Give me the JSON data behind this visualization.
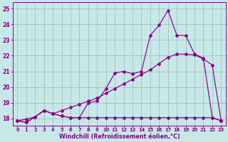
{
  "bg_color": "#c8e8e8",
  "line_color": "#880088",
  "grid_color": "#99bbbb",
  "xlabel": "Windchill (Refroidissement éolien,°C)",
  "xlim": [
    -0.5,
    23.5
  ],
  "ylim": [
    17.55,
    25.4
  ],
  "xticks": [
    0,
    1,
    2,
    3,
    4,
    5,
    6,
    7,
    8,
    9,
    10,
    11,
    12,
    13,
    14,
    15,
    16,
    17,
    18,
    19,
    20,
    21,
    22,
    23
  ],
  "yticks": [
    18,
    19,
    20,
    21,
    22,
    23,
    24,
    25
  ],
  "line_flat_x": [
    0,
    1,
    2,
    3,
    4,
    5,
    6,
    7,
    8,
    9,
    10,
    11,
    12,
    13,
    14,
    15,
    16,
    17,
    18,
    19,
    20,
    21,
    22,
    23
  ],
  "line_flat_y": [
    17.85,
    17.75,
    18.1,
    18.5,
    18.3,
    18.15,
    18.05,
    18.05,
    18.05,
    18.05,
    18.05,
    18.05,
    18.05,
    18.05,
    18.05,
    18.05,
    18.05,
    18.05,
    18.05,
    18.05,
    18.05,
    18.05,
    18.05,
    17.85
  ],
  "line_diag_x": [
    0,
    1,
    2,
    3,
    4,
    5,
    6,
    7,
    8,
    9,
    10,
    11,
    12,
    13,
    14,
    15,
    16,
    17,
    18,
    19,
    20,
    21,
    22,
    23
  ],
  "line_diag_y": [
    17.85,
    17.95,
    18.1,
    18.5,
    18.3,
    18.5,
    18.7,
    18.9,
    19.1,
    19.3,
    19.6,
    19.9,
    20.2,
    20.5,
    20.8,
    21.1,
    21.5,
    21.9,
    22.1,
    22.1,
    22.05,
    21.8,
    21.4,
    17.85
  ],
  "line_wavy_x": [
    0,
    1,
    2,
    3,
    4,
    5,
    6,
    7,
    8,
    9,
    10,
    11,
    12,
    13,
    14,
    15,
    16,
    17,
    18,
    19,
    20,
    21,
    22,
    23
  ],
  "line_wavy_y": [
    17.85,
    17.75,
    18.1,
    18.5,
    18.3,
    18.15,
    18.05,
    18.05,
    19.0,
    19.1,
    19.9,
    20.9,
    21.0,
    20.85,
    21.0,
    23.3,
    23.95,
    24.9,
    23.3,
    23.3,
    22.1,
    21.85,
    18.05,
    17.85
  ]
}
